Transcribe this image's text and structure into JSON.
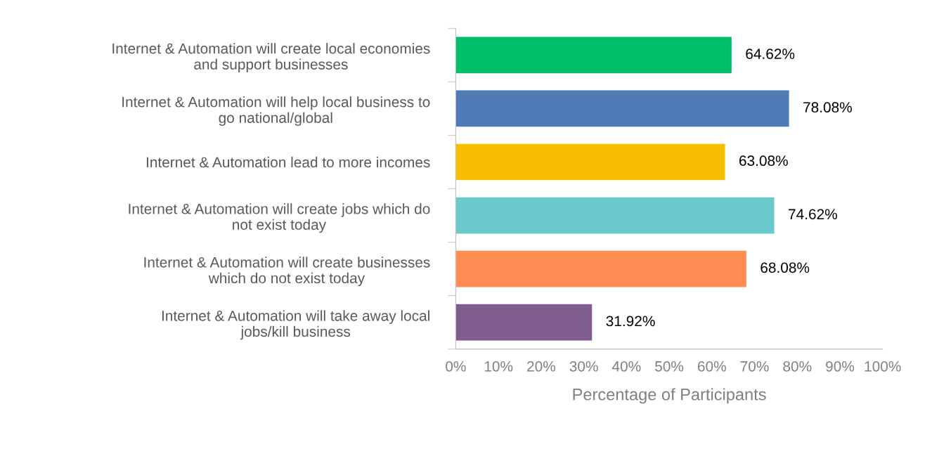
{
  "chart_data": {
    "type": "bar",
    "orientation": "horizontal",
    "xlabel": "Percentage of Participants",
    "categories": [
      "Internet & Automation will create local economies\nand support businesses",
      "Internet & Automation will help local business to\ngo national/global",
      "Internet & Automation lead to more incomes",
      "Internet & Automation will create jobs which do\nnot exist today",
      "Internet & Automation will create businesses\nwhich do not exist today",
      "Internet & Automation will take away local\njobs/kill business"
    ],
    "values": [
      64.62,
      78.08,
      63.08,
      74.62,
      68.08,
      31.92
    ],
    "value_labels": [
      "64.62%",
      "78.08%",
      "63.08%",
      "74.62%",
      "68.08%",
      "31.92%"
    ],
    "colors": [
      "#00bf6b",
      "#4e7bb5",
      "#f7bf00",
      "#6bc9cc",
      "#ff8c52",
      "#7e5e8f"
    ],
    "xlim": [
      0,
      100
    ],
    "xticks": [
      {
        "value": 0,
        "label": "0%"
      },
      {
        "value": 10,
        "label": "10%"
      },
      {
        "value": 20,
        "label": "20%"
      },
      {
        "value": 30,
        "label": "30%"
      },
      {
        "value": 40,
        "label": "40%"
      },
      {
        "value": 50,
        "label": "50%"
      },
      {
        "value": 60,
        "label": "60%"
      },
      {
        "value": 70,
        "label": "70%"
      },
      {
        "value": 80,
        "label": "80%"
      },
      {
        "value": 90,
        "label": "90%"
      },
      {
        "value": 100,
        "label": "100%"
      }
    ],
    "grid": false,
    "legend": false
  }
}
